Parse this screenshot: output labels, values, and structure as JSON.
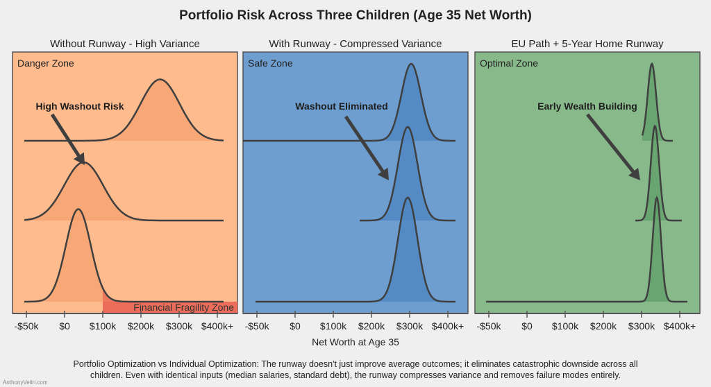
{
  "chart_data": {
    "type": "ridgeline",
    "title": "Portfolio Risk Across Three Children (Age 35 Net Worth)",
    "xlabel": "Net Worth at Age 35",
    "x_ticks": [
      "-$50k",
      "$0",
      "$100k",
      "$200k",
      "$300k",
      "$400k+"
    ],
    "x_tick_values_k": [
      -50,
      0,
      100,
      200,
      300,
      400
    ],
    "grid": false,
    "panels": [
      {
        "title": "Without Runway - High Variance",
        "zone_label": "Danger Zone",
        "annotation": "High Washout Risk",
        "background": "#fdbb8e",
        "fill": "#f5a06e",
        "highlight": {
          "label": "Financial Fragility Zone",
          "from_k": 100,
          "color": "#ec6e5a"
        },
        "series": [
          {
            "mean_k": 250,
            "spread": "wide",
            "peak": 0.59
          },
          {
            "mean_k": 50,
            "spread": "wide",
            "peak": 0.56
          },
          {
            "mean_k": 36,
            "spread": "medium",
            "peak": 0.89
          }
        ]
      },
      {
        "title": "With Runway - Compressed Variance",
        "zone_label": "Safe Zone",
        "annotation": "Washout Eliminated",
        "background": "#6e9dcf",
        "fill": "#4d86c2",
        "series": [
          {
            "mean_k": 304,
            "spread": "narrow",
            "peak": 0.74
          },
          {
            "mean_k": 295,
            "spread": "narrow",
            "peak": 0.9
          },
          {
            "mean_k": 295,
            "spread": "narrow",
            "peak": 1.0
          }
        ]
      },
      {
        "title": "EU Path + 5-Year Home Runway",
        "zone_label": "Optimal Zone",
        "annotation": "Early Wealth Building",
        "background": "#88b98b",
        "fill": "#5f9f68",
        "series": [
          {
            "mean_k": 327,
            "spread": "very narrow",
            "peak": 0.74
          },
          {
            "mean_k": 335,
            "spread": "very narrow",
            "peak": 0.91
          },
          {
            "mean_k": 340,
            "spread": "very narrow",
            "peak": 1.0
          }
        ]
      }
    ]
  },
  "caption": {
    "line1": "Portfolio Optimization vs Individual Optimization: The runway doesn't just improve average outcomes; it eliminates catastrophic downside across all",
    "line2": "children. Even with identical inputs (median salaries, standard debt), the runway compresses variance and removes failure modes entirely."
  },
  "watermark": "AnthonyVeltri.com"
}
